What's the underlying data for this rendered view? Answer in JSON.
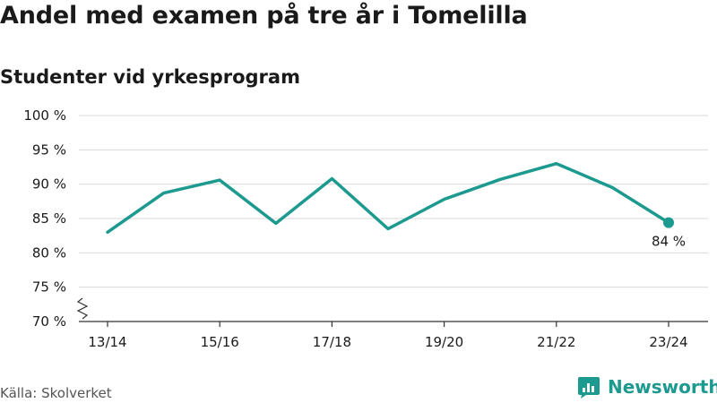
{
  "title": "Andel med examen på tre år i Tomelilla",
  "subtitle": "Studenter vid yrkesprogram",
  "source": "Källa: Skolverket",
  "brand": {
    "name": "Newsworthy",
    "icon": "newsworthy-logo-icon",
    "color": "#1d9a8f"
  },
  "chart_data": {
    "type": "line",
    "x": [
      "13/14",
      "14/15",
      "15/16",
      "16/17",
      "17/18",
      "18/19",
      "19/20",
      "20/21",
      "21/22",
      "22/23",
      "23/24"
    ],
    "series": [
      {
        "values": [
          83.0,
          88.7,
          90.6,
          84.3,
          90.8,
          83.5,
          87.8,
          90.7,
          93.0,
          89.5,
          84.4
        ],
        "color": "#1d9a8f"
      }
    ],
    "x_tick_labels": [
      "13/14",
      "15/16",
      "17/18",
      "19/20",
      "21/22",
      "23/24"
    ],
    "y_tick_labels": [
      "70 %",
      "75 %",
      "80 %",
      "85 %",
      "90 %",
      "95 %",
      "100 %"
    ],
    "y_ticks": [
      70,
      75,
      80,
      85,
      90,
      95,
      100
    ],
    "ylim": [
      70,
      100
    ],
    "axis_break": true,
    "end_label": "84 %",
    "grid": true,
    "legend": "none"
  }
}
